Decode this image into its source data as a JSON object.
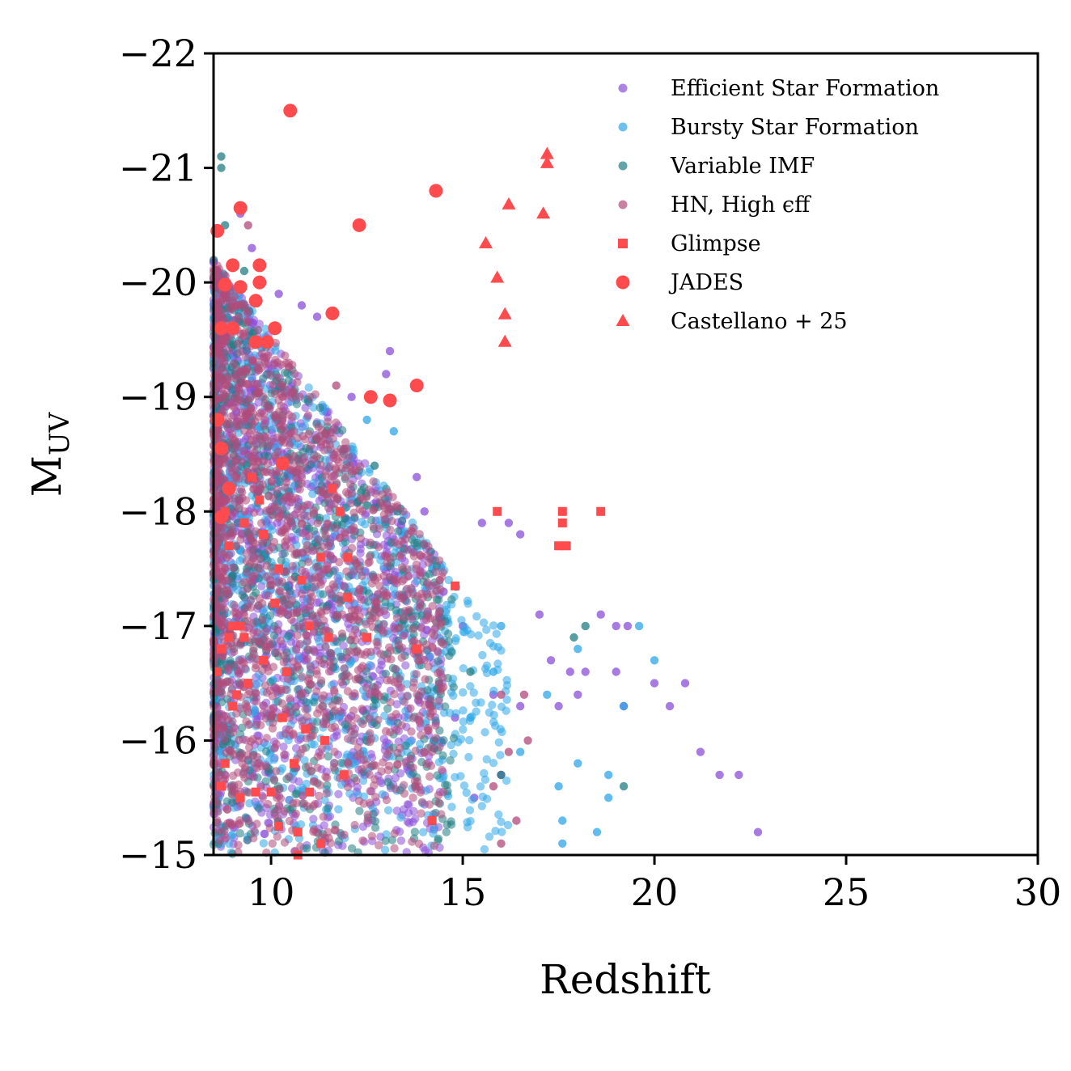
{
  "chart_data": {
    "type": "scatter",
    "title": "",
    "xlabel": "Redshift",
    "ylabel": "M",
    "ylabel_sub": "UV",
    "xlim": [
      8.5,
      30
    ],
    "ylim": [
      -15,
      -22
    ],
    "y_inverted": true,
    "xticks": [
      10,
      15,
      20,
      25,
      30
    ],
    "yticks": [
      -22,
      -21,
      -20,
      -19,
      -18,
      -17,
      -16,
      -15
    ],
    "xtick_labels": [
      "10",
      "15",
      "20",
      "25",
      "30"
    ],
    "ytick_labels": [
      "−22",
      "−21",
      "−20",
      "−19",
      "−18",
      "−17",
      "−16",
      "−15"
    ],
    "legend_position": "top-right",
    "grid": false,
    "series": [
      {
        "name": "Efficient Star Formation",
        "marker": "circle",
        "color": "#8a4fd8",
        "note": "dense cloud of simulated points",
        "points": [
          [
            9.2,
            -20.6
          ],
          [
            9.5,
            -20.3
          ],
          [
            10.2,
            -19.9
          ],
          [
            10.8,
            -19.8
          ],
          [
            11.2,
            -19.7
          ],
          [
            13.1,
            -19.4
          ],
          [
            13.0,
            -19.2
          ],
          [
            12.1,
            -19.0
          ],
          [
            13.8,
            -18.3
          ],
          [
            14.0,
            -18.0
          ],
          [
            16.2,
            -17.9
          ],
          [
            16.5,
            -17.8
          ],
          [
            15.5,
            -17.9
          ],
          [
            14.5,
            -17.3
          ],
          [
            15.0,
            -17.0
          ],
          [
            17.0,
            -17.1
          ],
          [
            18.6,
            -17.1
          ],
          [
            19.0,
            -17.0
          ],
          [
            19.3,
            -17.0
          ],
          [
            17.3,
            -16.7
          ],
          [
            17.8,
            -16.6
          ],
          [
            18.2,
            -16.6
          ],
          [
            19.0,
            -16.6
          ],
          [
            20.0,
            -16.5
          ],
          [
            20.8,
            -16.5
          ],
          [
            20.4,
            -16.3
          ],
          [
            18.0,
            -16.4
          ],
          [
            17.5,
            -16.3
          ],
          [
            19.2,
            -16.3
          ],
          [
            21.2,
            -15.9
          ],
          [
            21.7,
            -15.7
          ],
          [
            22.2,
            -15.7
          ],
          [
            22.7,
            -15.2
          ],
          [
            16.5,
            -16.3
          ],
          [
            16.0,
            -15.7
          ],
          [
            15.3,
            -15.5
          ],
          [
            14.8,
            -16.2
          ],
          [
            15.8,
            -16.4
          ]
        ]
      },
      {
        "name": "Bursty Star Formation",
        "marker": "circle",
        "color": "#2ea7e8",
        "note": "dense cloud of simulated points",
        "points": [
          [
            9.4,
            -19.3
          ],
          [
            12.5,
            -18.8
          ],
          [
            13.2,
            -18.7
          ],
          [
            14.2,
            -17.5
          ],
          [
            16.0,
            -17.0
          ],
          [
            17.2,
            -16.4
          ],
          [
            18.0,
            -16.8
          ],
          [
            19.6,
            -17.0
          ],
          [
            20.0,
            -16.7
          ],
          [
            19.2,
            -16.3
          ],
          [
            17.5,
            -15.6
          ],
          [
            18.0,
            -15.8
          ],
          [
            18.8,
            -15.7
          ],
          [
            18.8,
            -15.5
          ],
          [
            18.5,
            -15.2
          ],
          [
            17.6,
            -15.1
          ],
          [
            17.6,
            -15.3
          ],
          [
            15.8,
            -16.6
          ],
          [
            16.5,
            -15.9
          ],
          [
            15.2,
            -16.2
          ]
        ]
      },
      {
        "name": "Variable IMF",
        "marker": "circle",
        "color": "#217e83",
        "note": "dense cloud of simulated points",
        "points": [
          [
            8.7,
            -21.1
          ],
          [
            8.7,
            -21.0
          ],
          [
            8.8,
            -20.5
          ],
          [
            9.3,
            -20.1
          ],
          [
            12.7,
            -18.4
          ],
          [
            13.3,
            -18.0
          ],
          [
            18.2,
            -17.0
          ],
          [
            17.9,
            -16.9
          ],
          [
            19.2,
            -15.6
          ],
          [
            16.0,
            -15.7
          ],
          [
            15.2,
            -16.6
          ]
        ]
      },
      {
        "name": "HN, High ϵff",
        "marker": "circle",
        "color": "#b24a7a",
        "note": "dense cloud of simulated points",
        "points": [
          [
            9.4,
            -20.5
          ],
          [
            10.3,
            -19.0
          ],
          [
            11.7,
            -19.1
          ],
          [
            14.4,
            -17.4
          ],
          [
            16.7,
            -16.0
          ],
          [
            16.2,
            -15.9
          ],
          [
            16.0,
            -16.4
          ],
          [
            16.6,
            -16.4
          ],
          [
            15.8,
            -15.6
          ],
          [
            16.4,
            -15.3
          ],
          [
            16.0,
            -15.1
          ]
        ]
      },
      {
        "name": "Glimpse",
        "marker": "square",
        "color": "#ff4b4e",
        "points": [
          [
            15.9,
            -18.0
          ],
          [
            17.6,
            -18.0
          ],
          [
            18.6,
            -18.0
          ],
          [
            17.6,
            -17.9
          ],
          [
            17.5,
            -17.7
          ],
          [
            17.7,
            -17.7
          ],
          [
            14.8,
            -17.35
          ],
          [
            13.8,
            -16.8
          ],
          [
            11.6,
            -18.2
          ],
          [
            11.8,
            -18.0
          ],
          [
            12.0,
            -17.6
          ],
          [
            11.3,
            -17.6
          ],
          [
            12.0,
            -17.25
          ],
          [
            10.8,
            -17.4
          ],
          [
            10.2,
            -17.5
          ],
          [
            9.8,
            -17.8
          ],
          [
            9.3,
            -17.9
          ],
          [
            8.8,
            -18.0
          ],
          [
            8.9,
            -17.7
          ],
          [
            9.5,
            -18.3
          ],
          [
            9.7,
            -18.1
          ],
          [
            10.1,
            -17.2
          ],
          [
            11.0,
            -17.0
          ],
          [
            11.5,
            -16.9
          ],
          [
            12.5,
            -16.9
          ],
          [
            10.4,
            -16.6
          ],
          [
            9.8,
            -16.7
          ],
          [
            9.4,
            -16.5
          ],
          [
            9.1,
            -16.4
          ],
          [
            8.9,
            -16.9
          ],
          [
            9.2,
            -17.0
          ],
          [
            9.0,
            -16.3
          ],
          [
            10.3,
            -16.2
          ],
          [
            10.9,
            -16.1
          ],
          [
            11.4,
            -16.0
          ],
          [
            10.6,
            -15.8
          ],
          [
            11.9,
            -15.7
          ],
          [
            11.0,
            -15.55
          ],
          [
            10.0,
            -15.55
          ],
          [
            9.6,
            -15.55
          ],
          [
            10.2,
            -15.25
          ],
          [
            10.7,
            -15.2
          ],
          [
            11.3,
            -15.1
          ],
          [
            10.7,
            -15.0
          ],
          [
            14.2,
            -15.3
          ],
          [
            8.8,
            -15.8
          ],
          [
            8.7,
            -15.6
          ],
          [
            9.2,
            -15.5
          ],
          [
            8.6,
            -16.6
          ],
          [
            8.7,
            -16.8
          ],
          [
            9.0,
            -17.0
          ],
          [
            9.3,
            -16.9
          ]
        ]
      },
      {
        "name": "JADES",
        "marker": "circle",
        "color": "#ff4b4e",
        "points": [
          [
            10.5,
            -21.5
          ],
          [
            9.2,
            -20.65
          ],
          [
            14.3,
            -20.8
          ],
          [
            12.3,
            -20.5
          ],
          [
            8.6,
            -20.45
          ],
          [
            9.0,
            -20.15
          ],
          [
            9.7,
            -20.15
          ],
          [
            8.8,
            -19.98
          ],
          [
            9.2,
            -19.96
          ],
          [
            9.7,
            -20.0
          ],
          [
            9.6,
            -19.84
          ],
          [
            11.6,
            -19.73
          ],
          [
            8.7,
            -19.6
          ],
          [
            9.0,
            -19.6
          ],
          [
            10.1,
            -19.6
          ],
          [
            9.6,
            -19.48
          ],
          [
            9.9,
            -19.48
          ],
          [
            13.8,
            -19.1
          ],
          [
            12.6,
            -19.0
          ],
          [
            13.1,
            -18.97
          ],
          [
            8.6,
            -18.8
          ],
          [
            8.7,
            -18.55
          ],
          [
            10.3,
            -18.42
          ],
          [
            8.9,
            -18.2
          ],
          [
            8.7,
            -17.95
          ]
        ]
      },
      {
        "name": "Castellano + 25",
        "marker": "triangle",
        "color": "#ff4b4e",
        "points": [
          [
            17.2,
            -21.12
          ],
          [
            17.2,
            -21.04
          ],
          [
            16.2,
            -20.68
          ],
          [
            17.1,
            -20.6
          ],
          [
            15.6,
            -20.34
          ],
          [
            15.9,
            -20.04
          ],
          [
            16.1,
            -19.72
          ],
          [
            16.1,
            -19.48
          ]
        ]
      }
    ]
  }
}
